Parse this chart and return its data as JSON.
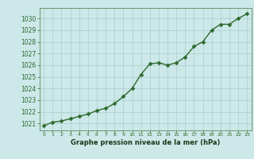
{
  "x": [
    0,
    1,
    2,
    3,
    4,
    5,
    6,
    7,
    8,
    9,
    10,
    11,
    12,
    13,
    14,
    15,
    16,
    17,
    18,
    19,
    20,
    21,
    22,
    23
  ],
  "y": [
    1020.8,
    1021.1,
    1021.2,
    1021.4,
    1021.6,
    1021.8,
    1022.1,
    1022.3,
    1022.7,
    1023.3,
    1024.0,
    1025.2,
    1026.1,
    1026.2,
    1026.0,
    1026.2,
    1026.7,
    1027.6,
    1028.0,
    1029.0,
    1029.5,
    1029.5,
    1030.0,
    1030.4
  ],
  "line_color": "#2d6a2d",
  "marker_color": "#2d6a2d",
  "bg_color": "#cce8e8",
  "grid_color": "#aacccc",
  "xlabel": "Graphe pression niveau de la mer (hPa)",
  "xlabel_color": "#1a3a1a",
  "ytick_min": 1021,
  "ytick_max": 1030,
  "ylim_min": 1020.4,
  "ylim_max": 1030.9,
  "tick_label_color": "#2d6a2d",
  "marker_size": 2.5,
  "line_width": 1.0,
  "spine_color": "#5a8a5a"
}
